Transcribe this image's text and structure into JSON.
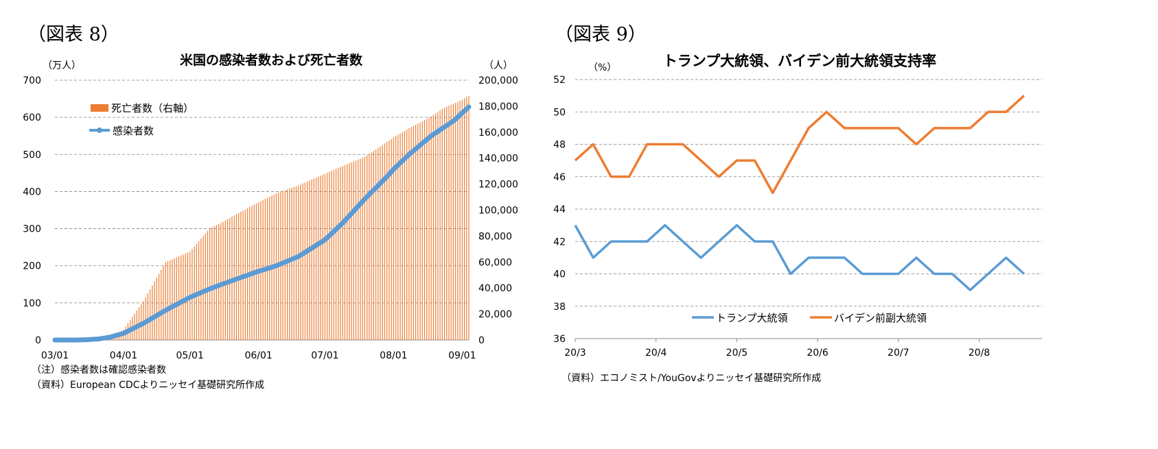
{
  "figures": {
    "left_label": "（図表 8）",
    "right_label": "（図表 9）"
  },
  "notes": {
    "left_note1": "（注）感染者数は確認感染者数",
    "left_note2": "（資料）European CDCよりニッセイ基礎研究所作成",
    "right_note1": "（資料）エコノミスト/YouGovよりニッセイ基礎研究所作成"
  },
  "colors": {
    "orange": "#ED7D31",
    "blue": "#5B9BD5",
    "grid": "#7f7f7f"
  },
  "chart_data": [
    {
      "type": "bar+line",
      "title": "米国の感染者数および死亡者数",
      "left_axis_unit": "（万人）",
      "right_axis_unit": "（人）",
      "left_ylim": [
        0,
        700
      ],
      "left_ticks": [
        "0",
        "100",
        "200",
        "300",
        "400",
        "500",
        "600",
        "700"
      ],
      "right_ylim": [
        0,
        200000
      ],
      "right_ticks": [
        "0",
        "20,000",
        "40,000",
        "60,000",
        "80,000",
        "100,000",
        "120,000",
        "140,000",
        "160,000",
        "180,000",
        "200,000"
      ],
      "x_ticks": [
        "03/01",
        "04/01",
        "05/01",
        "06/01",
        "07/01",
        "08/01",
        "09/01"
      ],
      "x_tick_days": [
        0,
        31,
        61,
        92,
        122,
        153,
        184
      ],
      "x_range_days": [
        0,
        187
      ],
      "legend": [
        "死亡者数（右軸）",
        "感染者数"
      ],
      "deaths_series": {
        "name": "死亡者数（右軸）",
        "axis": "right",
        "day": [
          0,
          10,
          20,
          25,
          31,
          40,
          50,
          61,
          70,
          75,
          80,
          92,
          100,
          110,
          122,
          130,
          140,
          153,
          160,
          170,
          175,
          184,
          187
        ],
        "value": [
          0,
          50,
          500,
          3000,
          8000,
          30000,
          60000,
          68000,
          86000,
          90000,
          95000,
          106000,
          113000,
          119000,
          128000,
          134000,
          141000,
          156000,
          163000,
          172000,
          178000,
          185000,
          188000
        ]
      },
      "cases_series": {
        "name": "感染者数",
        "axis": "left",
        "day": [
          0,
          10,
          15,
          20,
          25,
          31,
          40,
          50,
          61,
          70,
          80,
          92,
          100,
          110,
          118,
          122,
          130,
          140,
          150,
          153,
          160,
          170,
          180,
          187
        ],
        "value": [
          0,
          0,
          1,
          3,
          8,
          18,
          45,
          80,
          115,
          138,
          160,
          185,
          200,
          225,
          255,
          270,
          315,
          380,
          440,
          460,
          500,
          550,
          590,
          628
        ]
      }
    },
    {
      "type": "line",
      "title": "トランプ大統領、バイデン前大統領支持率",
      "ylabel": "（%）",
      "ylim": [
        36,
        52
      ],
      "y_ticks": [
        "36",
        "38",
        "40",
        "42",
        "44",
        "46",
        "48",
        "50",
        "52"
      ],
      "x_ticks": [
        "20/3",
        "20/4",
        "20/5",
        "20/6",
        "20/7",
        "20/8"
      ],
      "x_tick_index": [
        0,
        4.5,
        9,
        13.5,
        18,
        22.5
      ],
      "x_range_index": [
        0,
        26
      ],
      "legend": [
        "トランプ大統領",
        "バイデン前副大統領"
      ],
      "series": [
        {
          "name": "トランプ大統領",
          "values": [
            43,
            41,
            42,
            42,
            42,
            43,
            42,
            41,
            42,
            43,
            42,
            42,
            40,
            41,
            41,
            41,
            40,
            40,
            40,
            41,
            40,
            40,
            39,
            40,
            41,
            40
          ]
        },
        {
          "name": "バイデン前副大統領",
          "values": [
            47,
            48,
            46,
            46,
            48,
            48,
            48,
            47,
            46,
            47,
            47,
            45,
            47,
            49,
            50,
            49,
            49,
            49,
            49,
            48,
            49,
            49,
            49,
            50,
            50,
            51
          ]
        }
      ]
    }
  ]
}
